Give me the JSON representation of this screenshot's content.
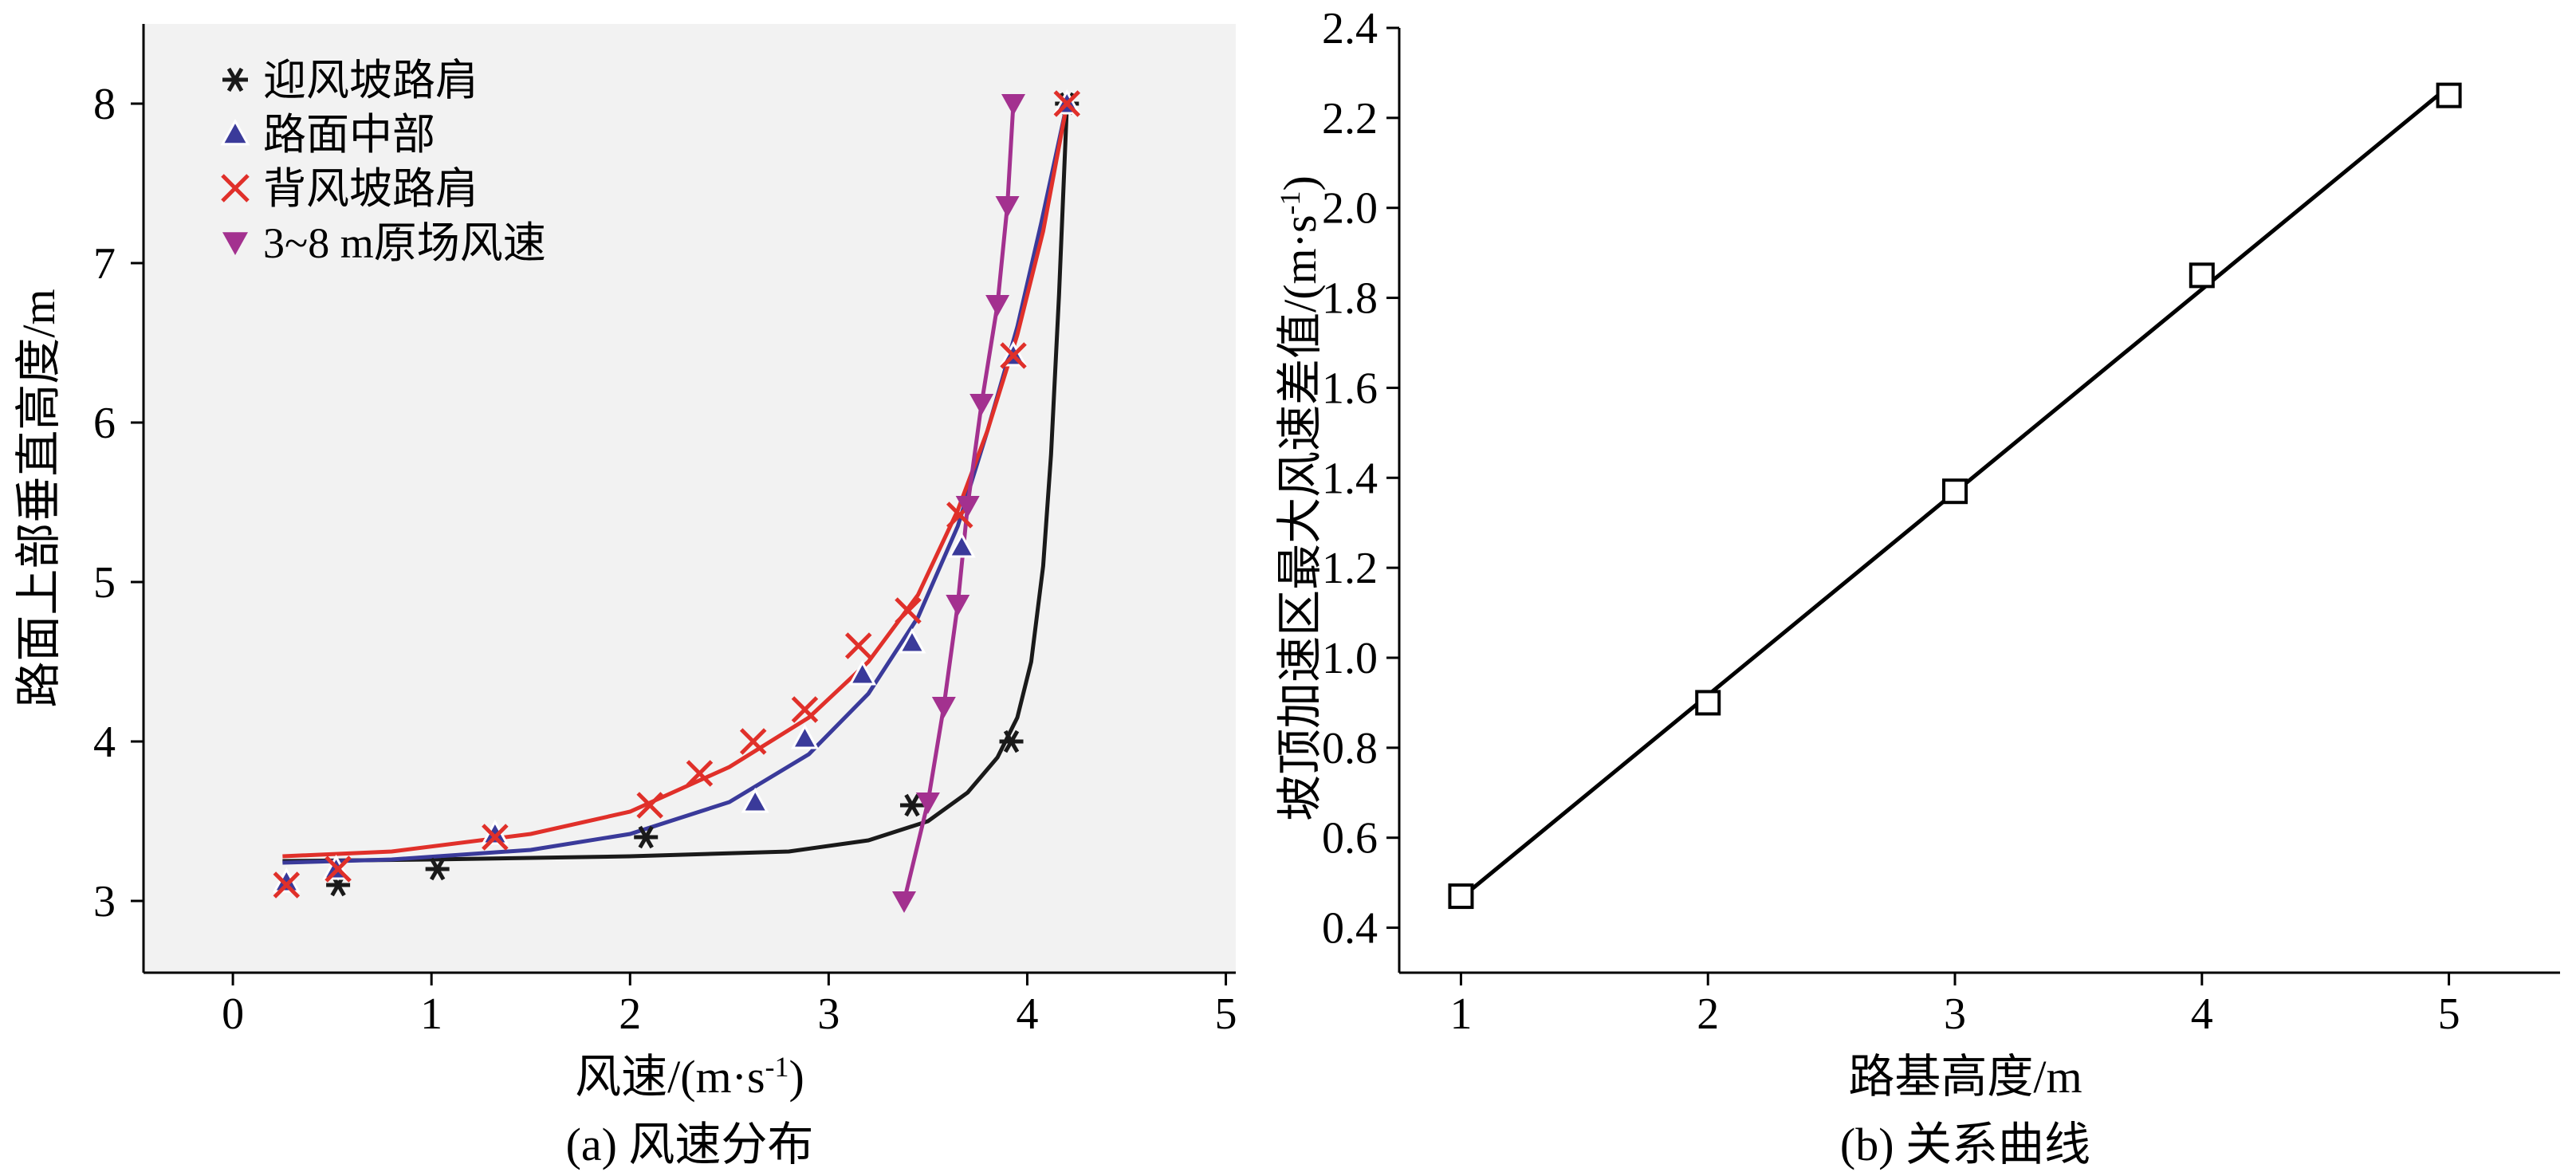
{
  "chart_data": [
    {
      "type": "scatter",
      "caption": "(a) 风速分布",
      "xlabel": "风速/(m·s",
      "xlabel_sup": "-1",
      "xlabel_tail": ")",
      "ylabel": "路面上部垂直高度/m",
      "xlim": [
        -0.45,
        5.05
      ],
      "ylim": [
        2.55,
        8.5
      ],
      "xticks": [
        0,
        1,
        2,
        3,
        4,
        5
      ],
      "yticks": [
        3,
        4,
        5,
        6,
        7,
        8
      ],
      "grid": false,
      "legend_position": "top-left",
      "series": [
        {
          "name": "迎风坡路肩",
          "marker": "asterisk",
          "color": "#1a1a1a",
          "points": [
            [
              0.53,
              3.1
            ],
            [
              1.03,
              3.2
            ],
            [
              2.08,
              3.4
            ],
            [
              3.42,
              3.6
            ],
            [
              3.92,
              4.0
            ],
            [
              4.2,
              8.0
            ]
          ],
          "fit": [
            [
              0.25,
              3.25
            ],
            [
              1.0,
              3.26
            ],
            [
              2.0,
              3.28
            ],
            [
              2.8,
              3.31
            ],
            [
              3.2,
              3.38
            ],
            [
              3.5,
              3.5
            ],
            [
              3.7,
              3.68
            ],
            [
              3.85,
              3.9
            ],
            [
              3.95,
              4.15
            ],
            [
              4.02,
              4.5
            ],
            [
              4.08,
              5.1
            ],
            [
              4.12,
              5.8
            ],
            [
              4.16,
              6.8
            ],
            [
              4.2,
              8.0
            ]
          ]
        },
        {
          "name": "路面中部",
          "marker": "triangle-up",
          "color": "#3a3a9a",
          "points": [
            [
              0.27,
              3.12
            ],
            [
              0.52,
              3.2
            ],
            [
              1.32,
              3.42
            ],
            [
              2.63,
              3.62
            ],
            [
              2.88,
              4.02
            ],
            [
              3.17,
              4.42
            ],
            [
              3.42,
              4.62
            ],
            [
              3.67,
              5.22
            ],
            [
              3.93,
              6.42
            ],
            [
              4.2,
              8.0
            ]
          ],
          "fit": [
            [
              0.25,
              3.24
            ],
            [
              0.8,
              3.26
            ],
            [
              1.5,
              3.32
            ],
            [
              2.0,
              3.42
            ],
            [
              2.5,
              3.62
            ],
            [
              2.9,
              3.92
            ],
            [
              3.2,
              4.3
            ],
            [
              3.45,
              4.78
            ],
            [
              3.65,
              5.35
            ],
            [
              3.8,
              5.95
            ],
            [
              3.95,
              6.6
            ],
            [
              4.07,
              7.25
            ],
            [
              4.2,
              8.0
            ]
          ]
        },
        {
          "name": "背风坡路肩",
          "marker": "cross",
          "color": "#e0302a",
          "points": [
            [
              0.27,
              3.1
            ],
            [
              0.53,
              3.2
            ],
            [
              1.32,
              3.4
            ],
            [
              2.1,
              3.6
            ],
            [
              2.35,
              3.8
            ],
            [
              2.62,
              4.0
            ],
            [
              2.88,
              4.2
            ],
            [
              3.15,
              4.6
            ],
            [
              3.4,
              4.82
            ],
            [
              3.66,
              5.42
            ],
            [
              3.93,
              6.42
            ],
            [
              4.2,
              8.0
            ]
          ],
          "fit": [
            [
              0.25,
              3.28
            ],
            [
              0.8,
              3.31
            ],
            [
              1.5,
              3.42
            ],
            [
              2.0,
              3.56
            ],
            [
              2.5,
              3.84
            ],
            [
              2.9,
              4.15
            ],
            [
              3.2,
              4.5
            ],
            [
              3.45,
              4.92
            ],
            [
              3.65,
              5.45
            ],
            [
              3.8,
              5.95
            ],
            [
              3.95,
              6.55
            ],
            [
              4.08,
              7.2
            ],
            [
              4.2,
              8.0
            ]
          ]
        },
        {
          "name": "3~8 m原场风速",
          "marker": "triangle-down",
          "color": "#a3318f",
          "points": [
            [
              3.38,
              3.0
            ],
            [
              3.5,
              3.62
            ],
            [
              3.58,
              4.22
            ],
            [
              3.65,
              4.86
            ],
            [
              3.7,
              5.48
            ],
            [
              3.77,
              6.12
            ],
            [
              3.85,
              6.74
            ],
            [
              3.9,
              7.36
            ],
            [
              3.93,
              8.0
            ]
          ],
          "fit": [
            [
              3.38,
              3.0
            ],
            [
              3.5,
              3.62
            ],
            [
              3.58,
              4.22
            ],
            [
              3.65,
              4.86
            ],
            [
              3.7,
              5.48
            ],
            [
              3.77,
              6.12
            ],
            [
              3.85,
              6.74
            ],
            [
              3.9,
              7.36
            ],
            [
              3.93,
              8.0
            ]
          ]
        }
      ]
    },
    {
      "type": "line",
      "caption": "(b) 关系曲线",
      "xlabel": "路基高度/m",
      "ylabel": "坡顶加速区最大风速差值/(m·s",
      "ylabel_sup": "-1",
      "ylabel_tail": ")",
      "xlim": [
        0.75,
        5.45
      ],
      "ylim": [
        0.3,
        2.4
      ],
      "xticks": [
        1,
        2,
        3,
        4,
        5
      ],
      "yticks": [
        0.4,
        0.6,
        0.8,
        1.0,
        1.2,
        1.4,
        1.6,
        1.8,
        2.0,
        2.2,
        2.4
      ],
      "ytick_labels": [
        "0.4",
        "0.6",
        "0.8",
        "1.0",
        "1.2",
        "1.4",
        "1.6",
        "1.8",
        "2.0",
        "2.2",
        "2.4"
      ],
      "grid": false,
      "series": [
        {
          "marker": "square",
          "color": "#000000",
          "x": [
            1,
            2,
            3,
            4,
            5
          ],
          "y": [
            0.47,
            0.9,
            1.37,
            1.85,
            2.25
          ]
        }
      ]
    }
  ]
}
